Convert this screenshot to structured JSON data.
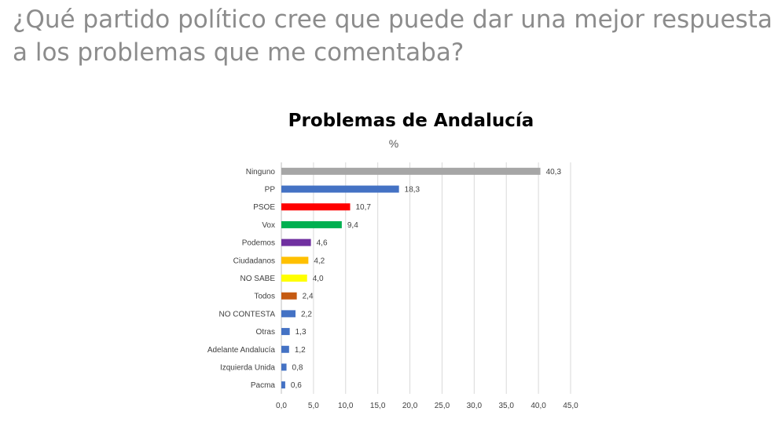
{
  "slide": {
    "title_line1": "¿Qué partido político cree que puede dar una mejor respuesta",
    "title_line2": "a los problemas que me comentaba?"
  },
  "chart_data": {
    "type": "bar",
    "orientation": "horizontal",
    "title": "Problemas de Andalucía",
    "subtitle": "%",
    "xlabel": "",
    "ylabel": "",
    "xlim": [
      0,
      45
    ],
    "x_ticks": [
      "0,0",
      "5,0",
      "10,0",
      "15,0",
      "20,0",
      "25,0",
      "30,0",
      "35,0",
      "40,0",
      "45,0"
    ],
    "grid": "vertical",
    "categories": [
      "Ninguno",
      "PP",
      "PSOE",
      "Vox",
      "Podemos",
      "Ciudadanos",
      "NO SABE",
      "Todos",
      "NO CONTESTA",
      "Otras",
      "Adelante Andalucía",
      "Izquierda Unida",
      "Pacma"
    ],
    "values": [
      40.3,
      18.3,
      10.7,
      9.4,
      4.6,
      4.2,
      4.0,
      2.4,
      2.2,
      1.3,
      1.2,
      0.8,
      0.6
    ],
    "value_labels": [
      "40,3",
      "18,3",
      "10,7",
      "9,4",
      "4,6",
      "4,2",
      "4,0",
      "2,4",
      "2,2",
      "1,3",
      "1,2",
      "0,8",
      "0,6"
    ],
    "colors": [
      "#a6a6a6",
      "#4472c4",
      "#ff0000",
      "#00b050",
      "#7030a0",
      "#ffc000",
      "#ffff00",
      "#c55a11",
      "#4472c4",
      "#4472c4",
      "#4472c4",
      "#4472c4",
      "#4472c4"
    ]
  }
}
